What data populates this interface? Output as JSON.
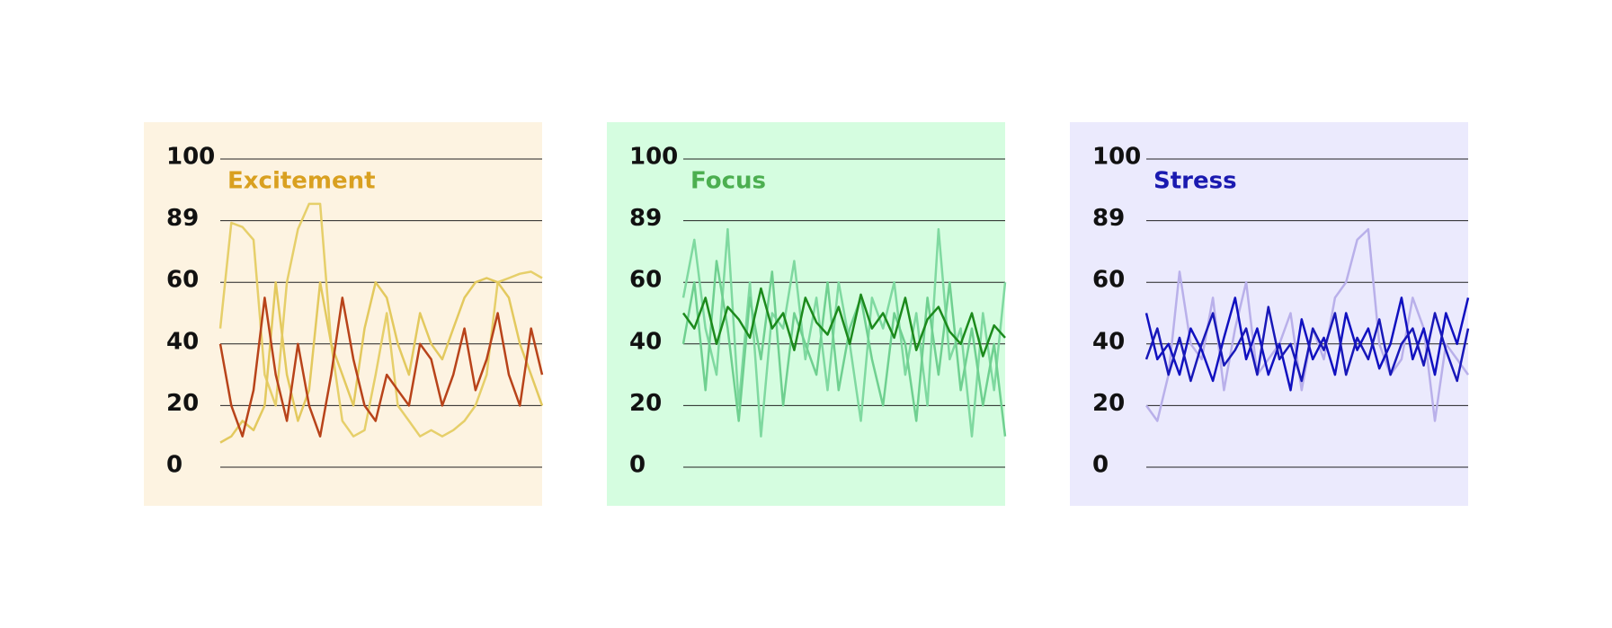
{
  "chart_data": [
    {
      "type": "line",
      "title": "Excitement",
      "title_color": "#d9a020",
      "background": "#fdf3e1",
      "yticks": [
        0,
        20,
        40,
        60,
        89,
        100
      ],
      "ylim": [
        0,
        100
      ],
      "grid": true,
      "series": [
        {
          "color": "#e6cf6a",
          "values": [
            45,
            88,
            86,
            80,
            30,
            20,
            60,
            85,
            92,
            92,
            40,
            15,
            10,
            12,
            30,
            50,
            20,
            15,
            10,
            12,
            10,
            12,
            15,
            20,
            30,
            60,
            62,
            64,
            65,
            62
          ]
        },
        {
          "color": "#e3c95e",
          "values": [
            8,
            10,
            15,
            12,
            20,
            60,
            30,
            15,
            25,
            60,
            40,
            30,
            20,
            45,
            60,
            55,
            40,
            30,
            50,
            40,
            35,
            45,
            55,
            60,
            62,
            60,
            55,
            40,
            30,
            20
          ]
        },
        {
          "color": "#b8431a",
          "values": [
            40,
            20,
            10,
            25,
            55,
            30,
            15,
            40,
            20,
            10,
            30,
            55,
            35,
            20,
            15,
            30,
            25,
            20,
            40,
            35,
            20,
            30,
            45,
            25,
            35,
            50,
            30,
            20,
            45,
            30
          ]
        }
      ]
    },
    {
      "type": "line",
      "title": "Focus",
      "title_color": "#4caf50",
      "background": "#d5fde0",
      "yticks": [
        0,
        20,
        40,
        60,
        89,
        100
      ],
      "ylim": [
        0,
        100
      ],
      "grid": true,
      "series": [
        {
          "color": "#7fd9a0",
          "values": [
            55,
            80,
            45,
            30,
            85,
            20,
            60,
            10,
            50,
            45,
            70,
            35,
            55,
            25,
            60,
            40,
            15,
            55,
            45,
            60,
            30,
            50,
            20,
            85,
            35,
            45,
            10,
            50,
            25,
            60
          ]
        },
        {
          "color": "#6fd090",
          "values": [
            40,
            60,
            25,
            70,
            45,
            15,
            55,
            35,
            65,
            20,
            50,
            40,
            30,
            60,
            25,
            45,
            55,
            35,
            20,
            50,
            40,
            15,
            55,
            30,
            60,
            25,
            45,
            20,
            40,
            10
          ]
        },
        {
          "color": "#1c8a1c",
          "values": [
            50,
            45,
            55,
            40,
            52,
            48,
            42,
            58,
            45,
            50,
            38,
            55,
            47,
            43,
            52,
            40,
            56,
            45,
            50,
            42,
            55,
            38,
            48,
            52,
            44,
            40,
            50,
            36,
            46,
            42
          ]
        }
      ]
    },
    {
      "type": "line",
      "title": "Stress",
      "title_color": "#1a1ab0",
      "background": "#ebeafd",
      "yticks": [
        0,
        20,
        40,
        60,
        89,
        100
      ],
      "ylim": [
        0,
        100
      ],
      "grid": true,
      "series": [
        {
          "color": "#b9b0ea",
          "values": [
            20,
            15,
            30,
            65,
            40,
            35,
            55,
            25,
            45,
            60,
            30,
            35,
            40,
            50,
            25,
            45,
            35,
            55,
            60,
            80,
            85,
            40,
            30,
            35,
            55,
            45,
            15,
            40,
            35,
            30
          ]
        },
        {
          "color": "#1010c0",
          "values": [
            50,
            35,
            40,
            30,
            45,
            38,
            28,
            42,
            55,
            35,
            45,
            30,
            40,
            25,
            48,
            35,
            42,
            30,
            50,
            38,
            45,
            32,
            40,
            55,
            35,
            45,
            30,
            50,
            40,
            55
          ]
        },
        {
          "color": "#1818b8",
          "values": [
            35,
            45,
            30,
            42,
            28,
            40,
            50,
            33,
            38,
            45,
            30,
            52,
            35,
            40,
            28,
            45,
            38,
            50,
            30,
            42,
            35,
            48,
            30,
            40,
            45,
            33,
            50,
            38,
            28,
            45
          ]
        }
      ]
    }
  ]
}
